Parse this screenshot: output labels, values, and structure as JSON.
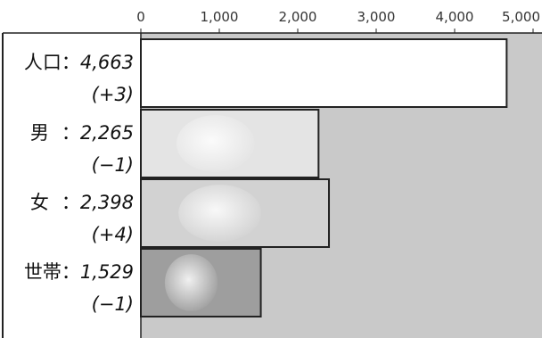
{
  "chart_data": {
    "type": "bar",
    "orientation": "horizontal",
    "categories": [
      "人口",
      "男",
      "女",
      "世帯"
    ],
    "values": [
      4663,
      2265,
      2398,
      1529
    ],
    "changes": [
      "(+3)",
      "(−1)",
      "(+4)",
      "(−1)"
    ],
    "category_labels": [
      {
        "name": "人口",
        "sep": "：",
        "value_text": "4,663",
        "change_text": "(+3)"
      },
      {
        "name": "男",
        "sep": "：",
        "value_text": "2,265",
        "change_text": "(−1)"
      },
      {
        "name": "女",
        "sep": "：",
        "value_text": "2,398",
        "change_text": "(+4)"
      },
      {
        "name": "世帯",
        "sep": "：",
        "value_text": "1,529",
        "change_text": "(−1)"
      }
    ],
    "xlim": [
      0,
      5000
    ],
    "xticks": [
      0,
      1000,
      2000,
      3000,
      4000,
      5000
    ],
    "xtick_labels": [
      "0",
      "1,000",
      "2,000",
      "3,000",
      "4,000",
      "5,000"
    ],
    "grid": false,
    "legend": "none",
    "title": "",
    "xlabel": "",
    "ylabel": "",
    "colors": {
      "plot_background": "#c9c9c9",
      "bar_fills": [
        "#ffffff",
        "#e4e4e4",
        "#d2d2d2",
        "#9e9e9e"
      ],
      "bar_stroke": "#222222",
      "frame": "#222222"
    }
  }
}
